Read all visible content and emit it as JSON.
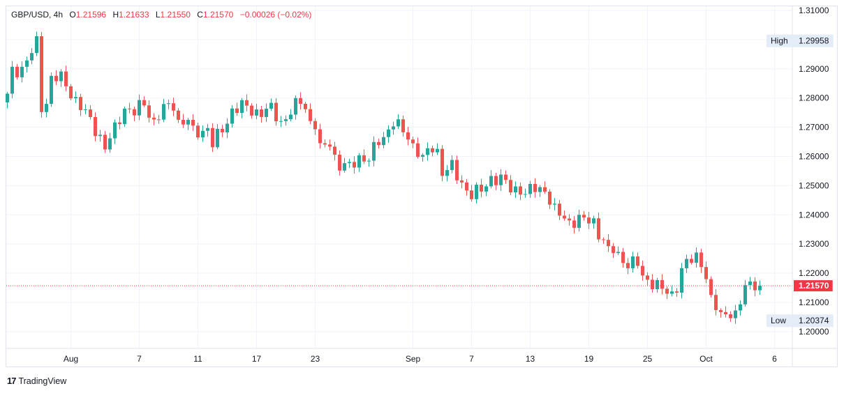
{
  "legend": {
    "symbol": "GBP/USD, 4h",
    "o_label": "O",
    "o_value": "1.21596",
    "h_label": "H",
    "h_value": "1.21633",
    "l_label": "L",
    "l_value": "1.21550",
    "c_label": "C",
    "c_value": "1.21570",
    "change": "−0.00026 (−0.02%)"
  },
  "footer": {
    "brand": "TradingView"
  },
  "colors": {
    "up": "#26a69a",
    "down": "#ef5350",
    "price_tag": "#f23645",
    "grid": "#f0f3fa"
  },
  "chart_data": {
    "type": "candlestick",
    "title": "GBP/USD, 4h",
    "y_axis": {
      "ticks": [
        "1.31000",
        "1.30000",
        "1.29000",
        "1.28000",
        "1.27000",
        "1.26000",
        "1.25000",
        "1.24000",
        "1.23000",
        "1.22000",
        "1.21000",
        "1.20000"
      ],
      "range": [
        1.196,
        1.313
      ]
    },
    "x_axis": {
      "ticks": [
        "Aug",
        "7",
        "11",
        "17",
        "23",
        "Sep",
        "7",
        "13",
        "19",
        "25",
        "Oct",
        "6"
      ],
      "tick_bars": [
        13,
        27,
        39,
        51,
        63,
        83,
        95,
        107,
        119,
        131,
        143,
        157
      ]
    },
    "markers": {
      "high": {
        "label": "High",
        "value": 1.29958
      },
      "low": {
        "label": "Low",
        "value": 1.20374
      },
      "last": {
        "value": 1.2157,
        "text": "1.21570"
      }
    },
    "anchor_closes": [
      [
        0,
        1.2815
      ],
      [
        1,
        1.289
      ],
      [
        3,
        1.2905
      ],
      [
        5,
        1.2955
      ],
      [
        6,
        1.2985
      ],
      [
        7,
        1.277
      ],
      [
        8,
        1.279
      ],
      [
        9,
        1.287
      ],
      [
        11,
        1.2865
      ],
      [
        13,
        1.282
      ],
      [
        15,
        1.277
      ],
      [
        17,
        1.272
      ],
      [
        19,
        1.267
      ],
      [
        20,
        1.263
      ],
      [
        22,
        1.269
      ],
      [
        24,
        1.277
      ],
      [
        26,
        1.275
      ],
      [
        28,
        1.278
      ],
      [
        30,
        1.272
      ],
      [
        32,
        1.276
      ],
      [
        34,
        1.278
      ],
      [
        35,
        1.272
      ],
      [
        37,
        1.272
      ],
      [
        38,
        1.268
      ],
      [
        40,
        1.269
      ],
      [
        41,
        1.27
      ],
      [
        42,
        1.264
      ],
      [
        44,
        1.269
      ],
      [
        46,
        1.276
      ],
      [
        48,
        1.277
      ],
      [
        50,
        1.276
      ],
      [
        52,
        1.275
      ],
      [
        54,
        1.276
      ],
      [
        56,
        1.272
      ],
      [
        58,
        1.275
      ],
      [
        60,
        1.279
      ],
      [
        61,
        1.277
      ],
      [
        62,
        1.272
      ],
      [
        63,
        1.271
      ],
      [
        64,
        1.262
      ],
      [
        66,
        1.265
      ],
      [
        67,
        1.26
      ],
      [
        68,
        1.257
      ],
      [
        70,
        1.256
      ],
      [
        72,
        1.26
      ],
      [
        74,
        1.259
      ],
      [
        76,
        1.265
      ],
      [
        77,
        1.267
      ],
      [
        79,
        1.272
      ],
      [
        81,
        1.268
      ],
      [
        82,
        1.267
      ],
      [
        83,
        1.264
      ],
      [
        84,
        1.262
      ],
      [
        85,
        1.259
      ],
      [
        87,
        1.263
      ],
      [
        88,
        1.262
      ],
      [
        89,
        1.255
      ],
      [
        91,
        1.256
      ],
      [
        92,
        1.253
      ],
      [
        93,
        1.251
      ],
      [
        95,
        1.247
      ],
      [
        97,
        1.248
      ],
      [
        99,
        1.253
      ],
      [
        101,
        1.252
      ],
      [
        103,
        1.249
      ],
      [
        105,
        1.249
      ],
      [
        106,
        1.247
      ],
      [
        108,
        1.249
      ],
      [
        110,
        1.249
      ],
      [
        112,
        1.241
      ],
      [
        113,
        1.24
      ],
      [
        115,
        1.238
      ],
      [
        117,
        1.238
      ],
      [
        118,
        1.238
      ],
      [
        120,
        1.238
      ],
      [
        121,
        1.234
      ],
      [
        122,
        1.231
      ],
      [
        123,
        1.227
      ],
      [
        124,
        1.228
      ],
      [
        126,
        1.225
      ],
      [
        127,
        1.223
      ],
      [
        129,
        1.223
      ],
      [
        130,
        1.219
      ],
      [
        132,
        1.217
      ],
      [
        134,
        1.214
      ],
      [
        136,
        1.213
      ],
      [
        137,
        1.216
      ],
      [
        138,
        1.221
      ],
      [
        139,
        1.223
      ],
      [
        141,
        1.226
      ],
      [
        142,
        1.224
      ],
      [
        143,
        1.219
      ],
      [
        144,
        1.21
      ],
      [
        146,
        1.206
      ],
      [
        148,
        1.207
      ],
      [
        149,
        1.205
      ],
      [
        150,
        1.209
      ],
      [
        151,
        1.216
      ],
      [
        153,
        1.217
      ],
      [
        154,
        1.2157
      ]
    ]
  }
}
